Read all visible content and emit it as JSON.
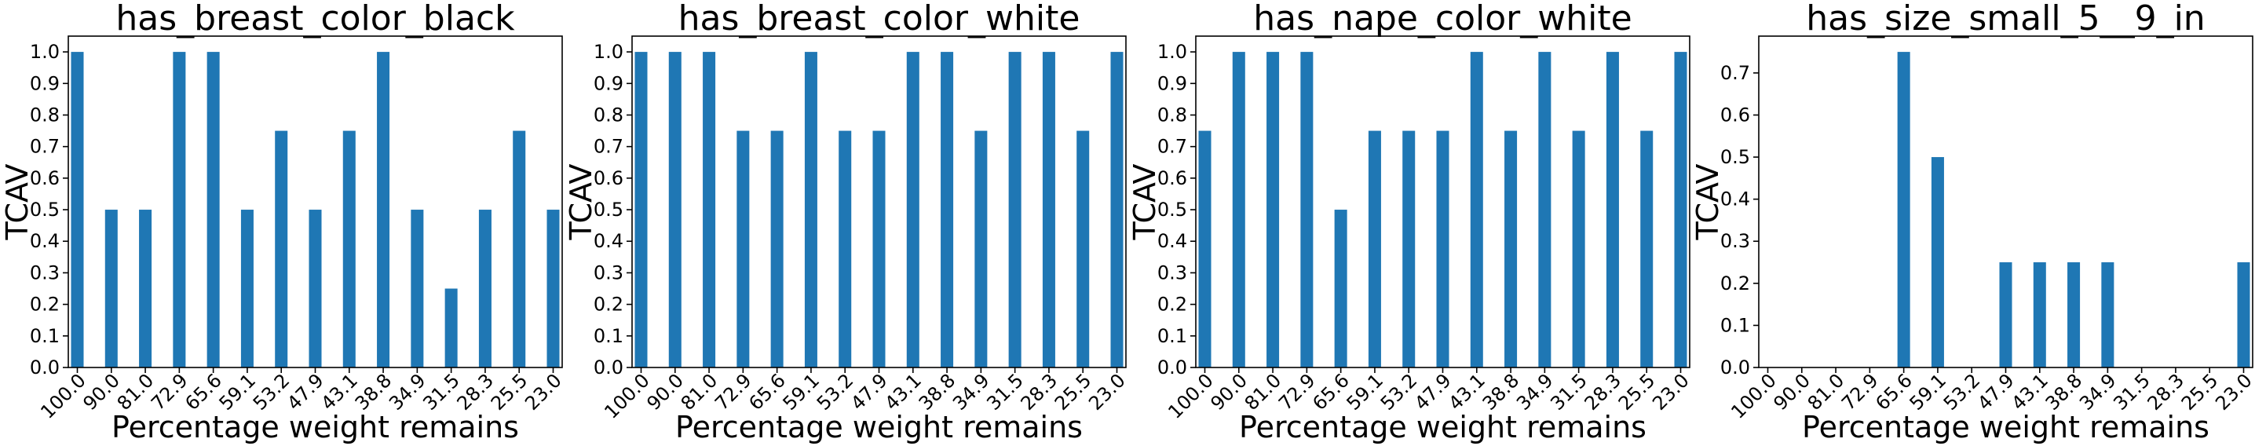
{
  "figure": {
    "bar_color": "#1f77b4",
    "background": "#ffffff"
  },
  "chart_data": [
    {
      "type": "bar",
      "title": "has_breast_color_black",
      "xlabel": "Percentage weight remains",
      "ylabel": "TCAV",
      "categories": [
        "100.0",
        "90.0",
        "81.0",
        "72.9",
        "65.6",
        "59.1",
        "53.2",
        "47.9",
        "43.1",
        "38.8",
        "34.9",
        "31.5",
        "28.3",
        "25.5",
        "23.0"
      ],
      "values": [
        1.0,
        0.5,
        0.5,
        1.0,
        1.0,
        0.5,
        0.75,
        0.5,
        0.75,
        1.0,
        0.5,
        0.25,
        0.5,
        0.75,
        0.5
      ],
      "ylim": [
        0,
        1.05
      ],
      "yticks": [
        0.0,
        0.1,
        0.2,
        0.3,
        0.4,
        0.5,
        0.6,
        0.7,
        0.8,
        0.9,
        1.0
      ],
      "ytick_labels": [
        "0.0",
        "0.1",
        "0.2",
        "0.3",
        "0.4",
        "0.5",
        "0.6",
        "0.7",
        "0.8",
        "0.9",
        "1.0"
      ],
      "grid": false,
      "legend": "none"
    },
    {
      "type": "bar",
      "title": "has_breast_color_white",
      "xlabel": "Percentage weight remains",
      "ylabel": "TCAV",
      "categories": [
        "100.0",
        "90.0",
        "81.0",
        "72.9",
        "65.6",
        "59.1",
        "53.2",
        "47.9",
        "43.1",
        "38.8",
        "34.9",
        "31.5",
        "28.3",
        "25.5",
        "23.0"
      ],
      "values": [
        1.0,
        1.0,
        1.0,
        0.75,
        0.75,
        1.0,
        0.75,
        0.75,
        1.0,
        1.0,
        0.75,
        1.0,
        1.0,
        0.75,
        1.0
      ],
      "ylim": [
        0,
        1.05
      ],
      "yticks": [
        0.0,
        0.1,
        0.2,
        0.3,
        0.4,
        0.5,
        0.6,
        0.7,
        0.8,
        0.9,
        1.0
      ],
      "ytick_labels": [
        "0.0",
        "0.1",
        "0.2",
        "0.3",
        "0.4",
        "0.5",
        "0.6",
        "0.7",
        "0.8",
        "0.9",
        "1.0"
      ],
      "grid": false,
      "legend": "none"
    },
    {
      "type": "bar",
      "title": "has_nape_color_white",
      "xlabel": "Percentage weight remains",
      "ylabel": "TCAV",
      "categories": [
        "100.0",
        "90.0",
        "81.0",
        "72.9",
        "65.6",
        "59.1",
        "53.2",
        "47.9",
        "43.1",
        "38.8",
        "34.9",
        "31.5",
        "28.3",
        "25.5",
        "23.0"
      ],
      "values": [
        0.75,
        1.0,
        1.0,
        1.0,
        0.5,
        0.75,
        0.75,
        0.75,
        1.0,
        0.75,
        1.0,
        0.75,
        1.0,
        0.75,
        1.0
      ],
      "ylim": [
        0,
        1.05
      ],
      "yticks": [
        0.0,
        0.1,
        0.2,
        0.3,
        0.4,
        0.5,
        0.6,
        0.7,
        0.8,
        0.9,
        1.0
      ],
      "ytick_labels": [
        "0.0",
        "0.1",
        "0.2",
        "0.3",
        "0.4",
        "0.5",
        "0.6",
        "0.7",
        "0.8",
        "0.9",
        "1.0"
      ],
      "grid": false,
      "legend": "none"
    },
    {
      "type": "bar",
      "title": "has_size_small_5__9_in",
      "xlabel": "Percentage weight remains",
      "ylabel": "TCAV",
      "categories": [
        "100.0",
        "90.0",
        "81.0",
        "72.9",
        "65.6",
        "59.1",
        "53.2",
        "47.9",
        "43.1",
        "38.8",
        "34.9",
        "31.5",
        "28.3",
        "25.5",
        "23.0"
      ],
      "values": [
        0,
        0,
        0,
        0,
        0.75,
        0.5,
        0,
        0.25,
        0.25,
        0.25,
        0.25,
        0,
        0,
        0,
        0.25
      ],
      "ylim": [
        0,
        0.7875
      ],
      "yticks": [
        0.0,
        0.1,
        0.2,
        0.3,
        0.4,
        0.5,
        0.6,
        0.7
      ],
      "ytick_labels": [
        "0.0",
        "0.1",
        "0.2",
        "0.3",
        "0.4",
        "0.5",
        "0.6",
        "0.7"
      ],
      "grid": false,
      "legend": "none"
    }
  ]
}
